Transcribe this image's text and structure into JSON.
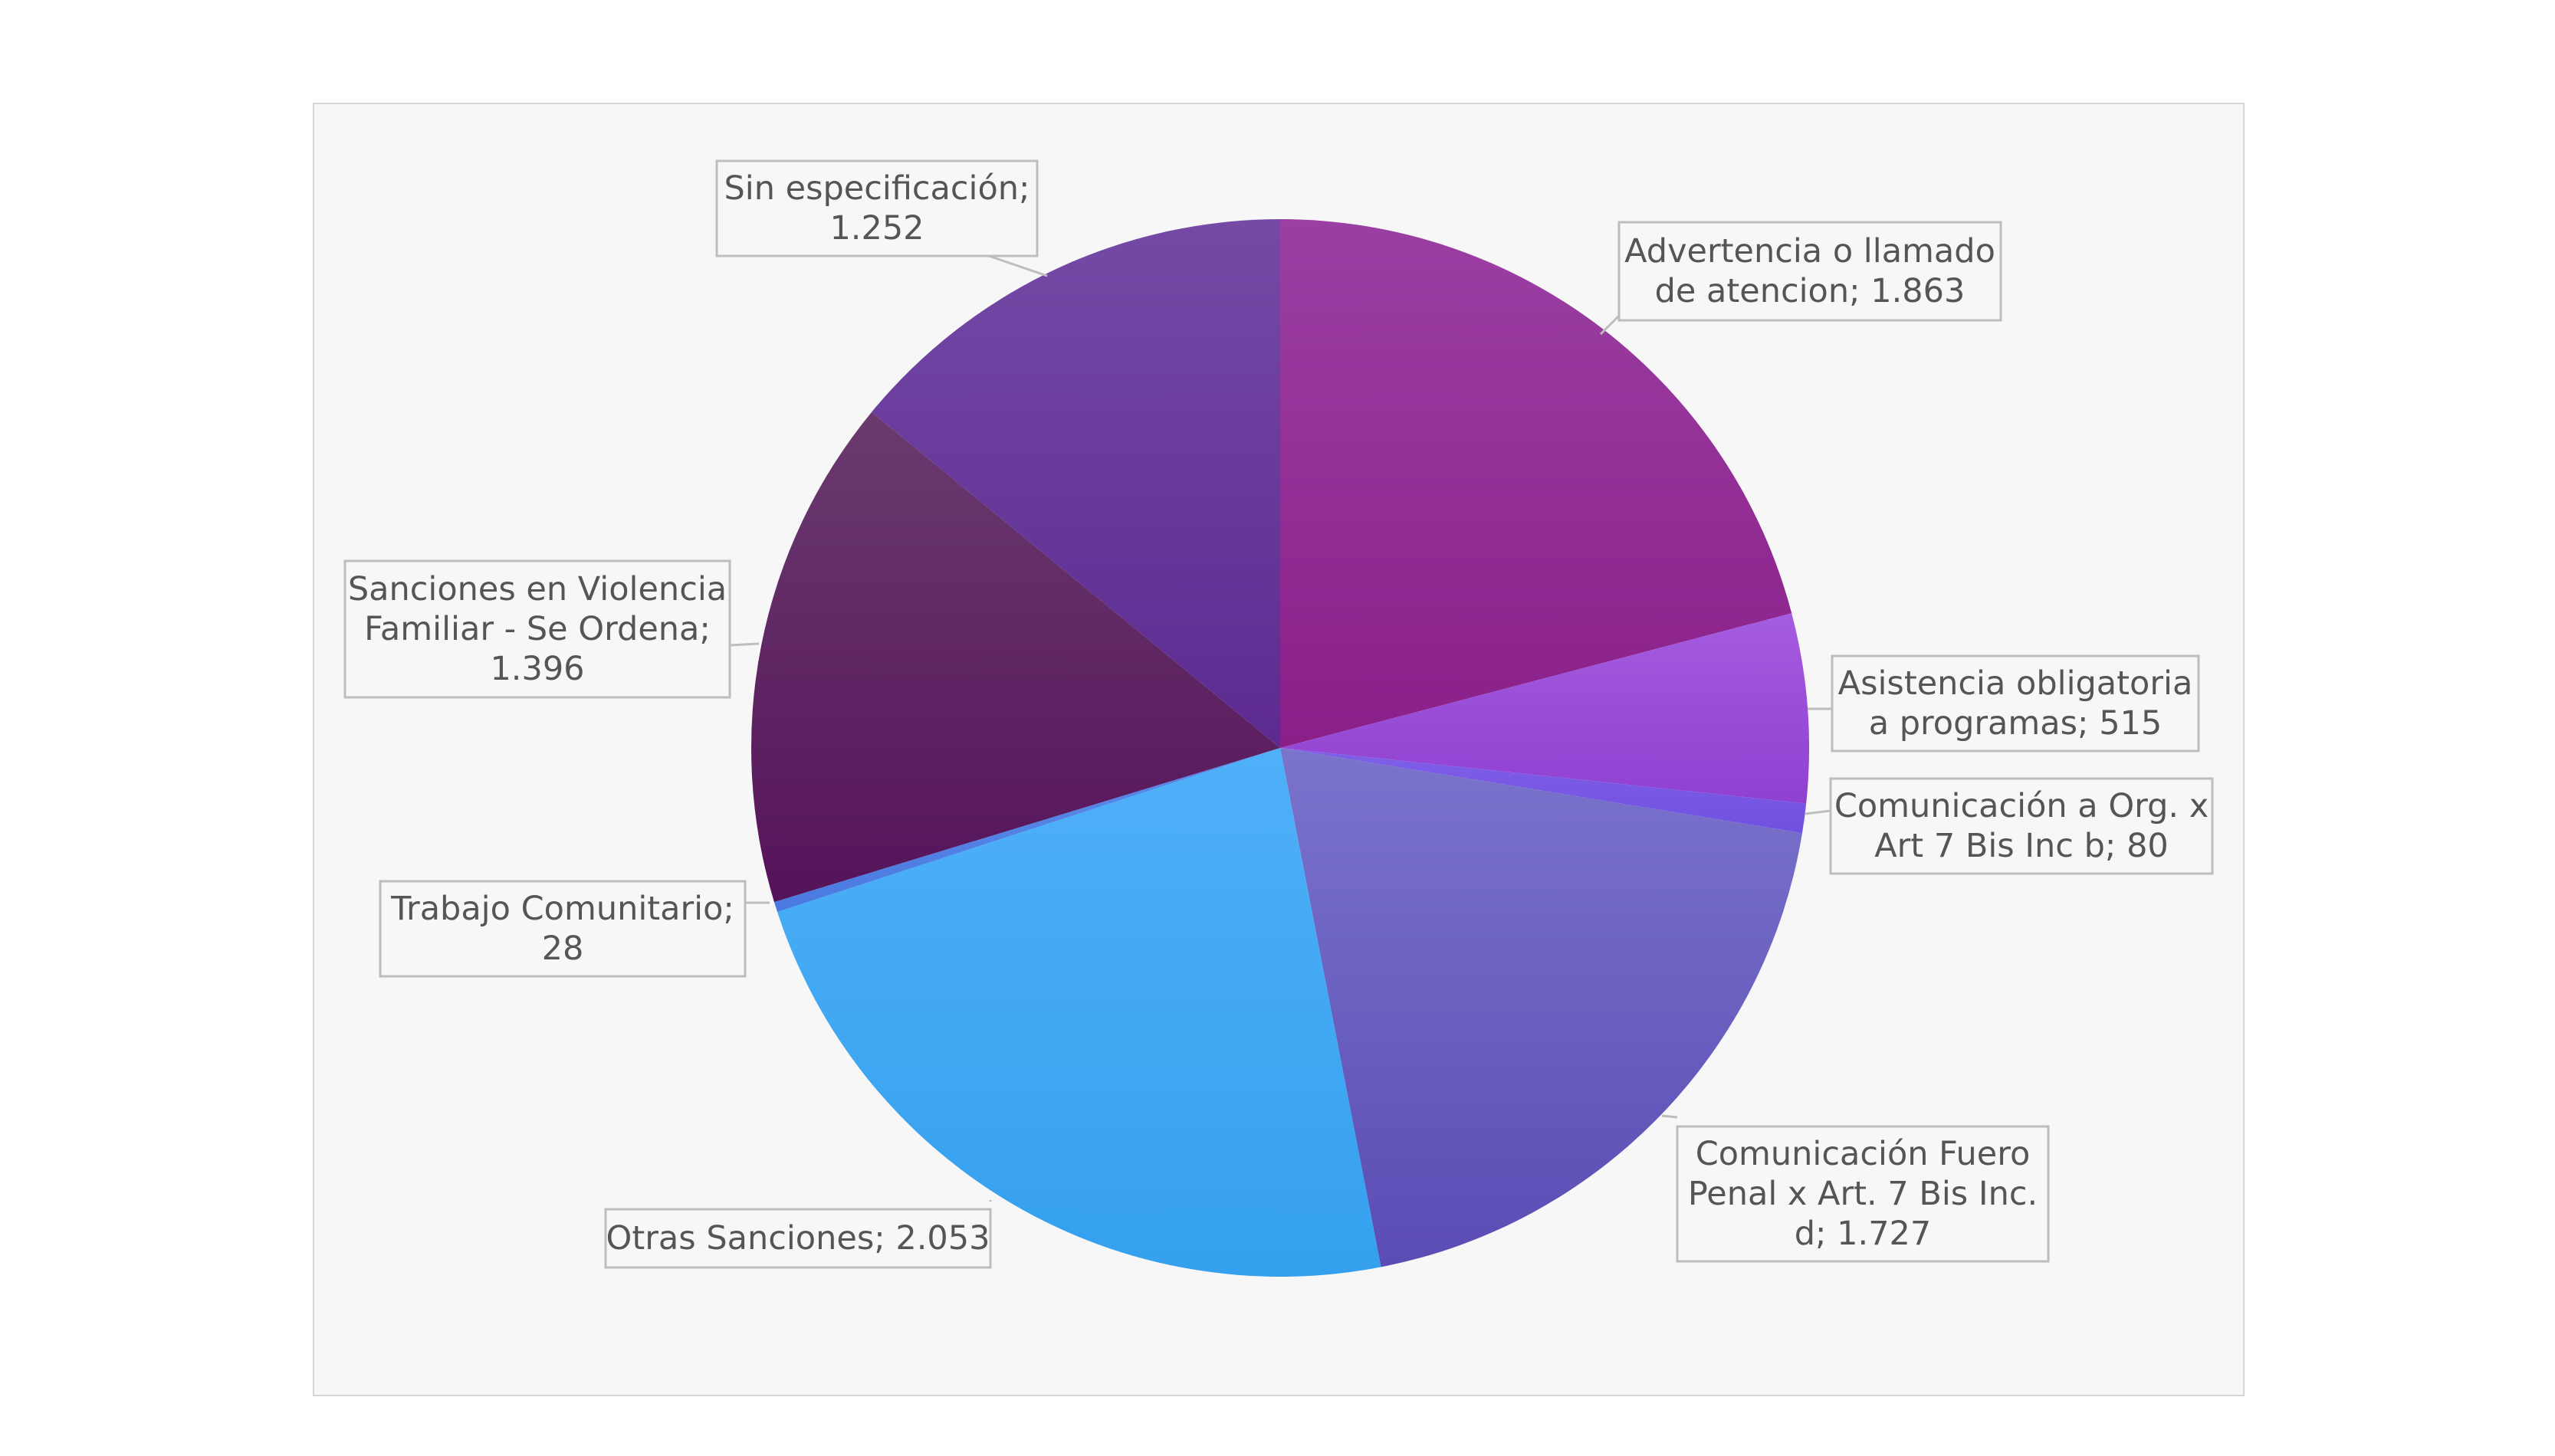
{
  "chart_data": {
    "type": "pie",
    "title": "",
    "legend": "none",
    "slices": [
      {
        "label": "Advertencia o llamado de atencion",
        "value_text": "1.863",
        "value": 1863,
        "color_top": "#9b3fa3",
        "color_bottom": "#8a1f88"
      },
      {
        "label": "Asistencia obligatoria a programas",
        "value_text": "515",
        "value": 515,
        "color_top": "#a45ce0",
        "color_bottom": "#9040d0"
      },
      {
        "label": "Comunicación a Org. x Art 7 Bis Inc b",
        "value_text": "80",
        "value": 80,
        "color_top": "#8060e8",
        "color_bottom": "#7050e0"
      },
      {
        "label": "Comunicación Fuero Penal x Art. 7 Bis Inc. d",
        "value_text": "1.727",
        "value": 1727,
        "color_top": "#7a74cc",
        "color_bottom": "#5a4cb4"
      },
      {
        "label": "Otras Sanciones",
        "value_text": "2.053",
        "value": 2053,
        "color_top": "#4fb0f8",
        "color_bottom": "#34a0ee"
      },
      {
        "label": "Trabajo Comunitario",
        "value_text": "28",
        "value": 28,
        "color_top": "#5a8ae8",
        "color_bottom": "#4a7ae0"
      },
      {
        "label": "Sanciones en Violencia Familiar  - Se Ordena",
        "value_text": "1.396",
        "value": 1396,
        "color_top": "#6a3a6e",
        "color_bottom": "#55135a"
      },
      {
        "label": "Sin especificación",
        "value_text": "1.252",
        "value": 1252,
        "color_top": "#744aa6",
        "color_bottom": "#5c2a90"
      }
    ]
  },
  "labels": [
    {
      "lines": [
        "Advertencia o llamado",
        "de atencion; 1.863"
      ]
    },
    {
      "lines": [
        "Asistencia obligatoria",
        "a programas; 515"
      ]
    },
    {
      "lines": [
        "Comunicación a Org. x",
        "Art 7 Bis Inc b; 80"
      ]
    },
    {
      "lines": [
        "Comunicación Fuero",
        "Penal x Art. 7 Bis Inc.",
        "d; 1.727"
      ]
    },
    {
      "lines": [
        "Otras Sanciones; 2.053"
      ]
    },
    {
      "lines": [
        "Trabajo Comunitario;",
        "28"
      ]
    },
    {
      "lines": [
        "Sanciones en Violencia",
        "Familiar  - Se Ordena;",
        "1.396"
      ]
    },
    {
      "lines": [
        "Sin especificación;",
        "1.252"
      ]
    }
  ]
}
